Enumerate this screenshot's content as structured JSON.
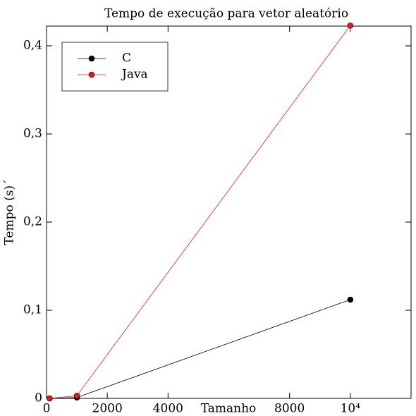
{
  "chart_data": {
    "type": "line",
    "title": "Tempo de execução para vetor aleatório",
    "xlabel": "Tamanho",
    "ylabel": "Tempo (s)´",
    "x": [
      100,
      1000,
      10000
    ],
    "series": [
      {
        "name": "C",
        "color": "#000000",
        "values": [
          0,
          0.001,
          0.112
        ]
      },
      {
        "name": "Java",
        "color": "#d62020",
        "values": [
          0,
          0.003,
          0.423
        ]
      }
    ],
    "xlim": [
      0,
      12000
    ],
    "xticks": [
      0,
      2000,
      4000,
      8000,
      {
        "value": 10000,
        "label": "10⁴"
      }
    ],
    "ylim": [
      0,
      0.4224
    ],
    "yticks": [
      {
        "value": 0,
        "label": "0"
      },
      {
        "value": 0.1,
        "label": "0,1"
      },
      {
        "value": 0.2,
        "label": "0,2"
      },
      {
        "value": 0.3,
        "label": "0,3"
      },
      {
        "value": 0.4,
        "label": "0,4"
      }
    ],
    "grid": false,
    "legend": "upper left"
  }
}
